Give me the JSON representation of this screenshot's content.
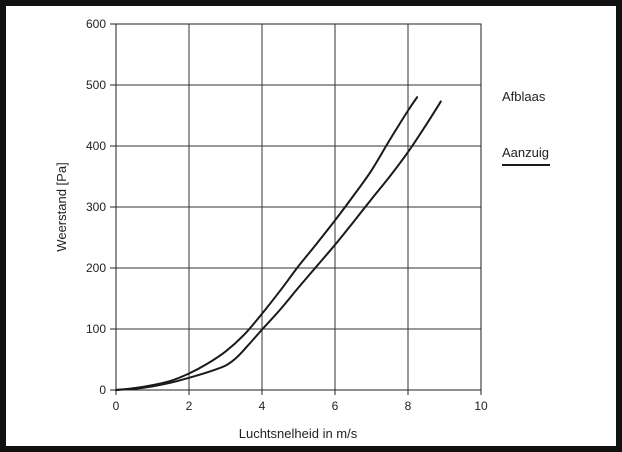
{
  "chart_data": {
    "type": "line",
    "xlabel": "Luchtsnelheid in m/s",
    "ylabel": "Weerstand [Pa]",
    "xlim": [
      0,
      10
    ],
    "ylim": [
      0,
      600
    ],
    "xticks": [
      0,
      2,
      4,
      6,
      8,
      10
    ],
    "yticks": [
      0,
      100,
      200,
      300,
      400,
      500,
      600
    ],
    "grid": true,
    "legend": "right",
    "line_color": "#1a1a1a",
    "series": [
      {
        "name": "Afblaas",
        "x": [
          0,
          0.5,
          1,
          1.5,
          2,
          2.5,
          3,
          3.5,
          4,
          4.5,
          5,
          5.5,
          6,
          6.5,
          7,
          7.5,
          8,
          8.25
        ],
        "y": [
          0,
          3,
          8,
          15,
          27,
          43,
          63,
          90,
          125,
          163,
          203,
          240,
          278,
          318,
          360,
          410,
          458,
          480
        ]
      },
      {
        "name": "Aanzuig",
        "x": [
          0,
          0.5,
          1,
          1.5,
          2,
          2.5,
          3,
          3.3,
          3.6,
          4,
          4.5,
          5,
          5.5,
          6,
          6.5,
          7,
          7.5,
          8,
          8.5,
          8.9
        ],
        "y": [
          0,
          2,
          6,
          12,
          20,
          29,
          40,
          53,
          72,
          99,
          132,
          168,
          203,
          238,
          275,
          313,
          350,
          390,
          435,
          473
        ]
      }
    ]
  }
}
